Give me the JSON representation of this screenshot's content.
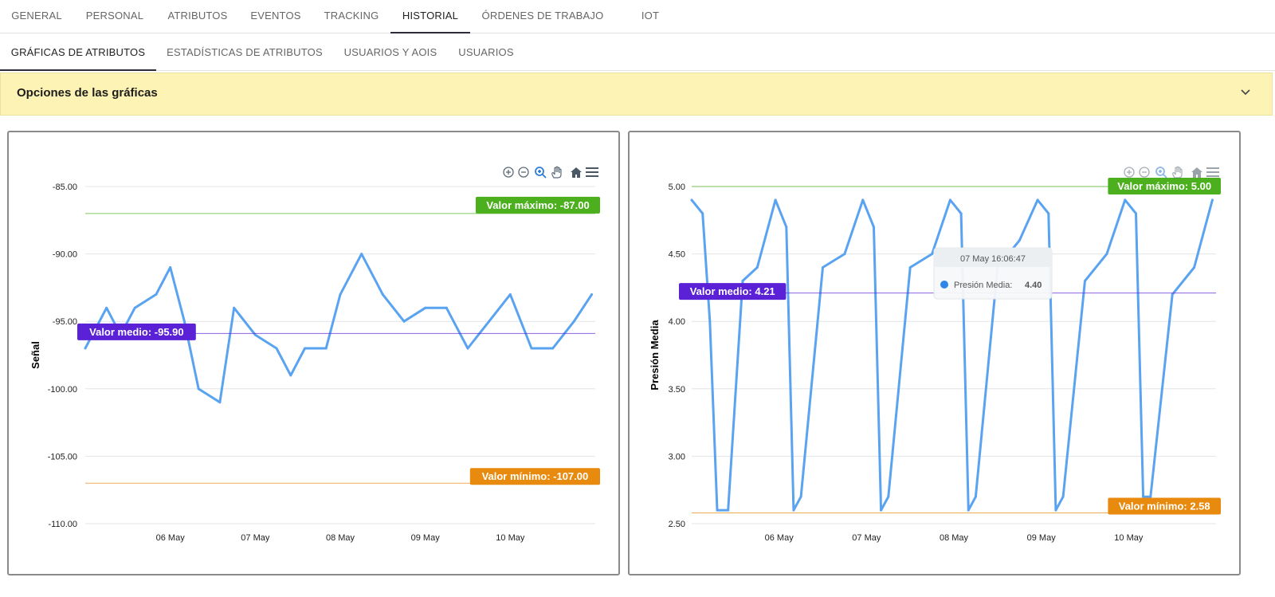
{
  "main_tabs": [
    {
      "label": "GENERAL"
    },
    {
      "label": "PERSONAL"
    },
    {
      "label": "ATRIBUTOS"
    },
    {
      "label": "EVENTOS"
    },
    {
      "label": "TRACKING"
    },
    {
      "label": "HISTORIAL",
      "active": true
    },
    {
      "label": "ÓRDENES DE TRABAJO"
    },
    {
      "label": "IOT"
    }
  ],
  "sub_tabs": [
    {
      "label": "GRÁFICAS DE ATRIBUTOS",
      "active": true
    },
    {
      "label": "ESTADÍSTICAS DE ATRIBUTOS"
    },
    {
      "label": "USUARIOS Y AOIS"
    },
    {
      "label": "USUARIOS"
    }
  ],
  "options": {
    "title": "Opciones de las gráficas"
  },
  "colors": {
    "series": "#5aa3f0",
    "max": "#4caf1e",
    "min": "#e88a0e",
    "mean": "#5b21d6",
    "active_tab_underline": "#2c2c3a",
    "options_bg": "#fcf3b4"
  },
  "toolbar_icons": [
    "zoom-in-icon",
    "zoom-out-icon",
    "magnifier-icon",
    "pan-hand-icon",
    "home-icon",
    "menu-icon"
  ],
  "chart_data": [
    {
      "type": "line",
      "ylabel": "Señal",
      "xlabel": "",
      "ylim": [
        -110,
        -85
      ],
      "yticks": [
        -85,
        -90,
        -95,
        -100,
        -105,
        -110
      ],
      "ytick_labels": [
        "-85.00",
        "-90.00",
        "-95.00",
        "-100.00",
        "-105.00",
        "-110.00"
      ],
      "x_range": [
        "2024-05-05T00:00",
        "2024-05-11T00:00"
      ],
      "xtick_labels": [
        "06 May",
        "07 May",
        "08 May",
        "09 May",
        "10 May"
      ],
      "reference_lines": {
        "max": {
          "value": -87,
          "label": "Valor máximo: -87.00"
        },
        "mean": {
          "value": -95.9,
          "label": "Valor medio: -95.90"
        },
        "min": {
          "value": -107,
          "label": "Valor mínimo: -107.00"
        }
      },
      "series": [
        {
          "x": [
            "05 May 00:00",
            "05 May 06:00",
            "05 May 10:00",
            "05 May 14:00",
            "05 May 20:00",
            "06 May 00:00",
            "06 May 04:00",
            "06 May 08:00",
            "06 May 14:00",
            "06 May 18:00",
            "07 May 00:00",
            "07 May 06:00",
            "07 May 10:00",
            "07 May 14:00",
            "07 May 20:00",
            "08 May 00:00",
            "08 May 06:00",
            "08 May 12:00",
            "08 May 18:00",
            "09 May 00:00",
            "09 May 06:00",
            "09 May 12:00",
            "09 May 18:00",
            "10 May 00:00",
            "10 May 06:00",
            "10 May 12:00",
            "10 May 18:00",
            "10 May 23:00"
          ],
          "values": [
            -97,
            -94,
            -96,
            -94,
            -93,
            -91,
            -95,
            -100,
            -101,
            -94,
            -96,
            -97,
            -99,
            -97,
            -97,
            -93,
            -90,
            -93,
            -95,
            -94,
            -94,
            -97,
            -95,
            -93,
            -97,
            -97,
            -95,
            -93
          ]
        }
      ]
    },
    {
      "type": "line",
      "ylabel": "Presión Media",
      "xlabel": "",
      "ylim": [
        2.5,
        5.0
      ],
      "yticks": [
        5.0,
        4.5,
        4.0,
        3.5,
        3.0,
        2.5
      ],
      "ytick_labels": [
        "5.00",
        "4.50",
        "4.00",
        "3.50",
        "3.00",
        "2.50"
      ],
      "x_range": [
        "2024-05-05T00:00",
        "2024-05-11T00:00"
      ],
      "xtick_labels": [
        "06 May",
        "07 May",
        "08 May",
        "09 May",
        "10 May"
      ],
      "reference_lines": {
        "max": {
          "value": 5.0,
          "label": "Valor máximo: 5.00"
        },
        "mean": {
          "value": 4.21,
          "label": "Valor medio: 4.21"
        },
        "min": {
          "value": 2.58,
          "label": "Valor mínimo: 2.58"
        }
      },
      "series": [
        {
          "name": "Presión Media",
          "x": [
            "05 May 00:00",
            "05 May 03:00",
            "05 May 05:00",
            "05 May 07:00",
            "05 May 10:00",
            "05 May 14:00",
            "05 May 18:00",
            "05 May 23:00",
            "06 May 02:00",
            "06 May 04:00",
            "06 May 06:00",
            "06 May 12:00",
            "06 May 18:00",
            "06 May 23:00",
            "07 May 02:00",
            "07 May 04:00",
            "07 May 06:00",
            "07 May 12:00",
            "07 May 18:00",
            "07 May 23:00",
            "08 May 02:00",
            "08 May 04:00",
            "08 May 06:00",
            "08 May 12:00",
            "08 May 18:00",
            "08 May 23:00",
            "09 May 02:00",
            "09 May 04:00",
            "09 May 06:00",
            "09 May 12:00",
            "09 May 18:00",
            "09 May 23:00",
            "10 May 02:00",
            "10 May 04:00",
            "10 May 06:00",
            "10 May 12:00",
            "10 May 18:00",
            "10 May 23:00"
          ],
          "values": [
            4.9,
            4.8,
            4.0,
            2.6,
            2.6,
            4.3,
            4.4,
            4.9,
            4.7,
            2.6,
            2.7,
            4.4,
            4.5,
            4.9,
            4.7,
            2.6,
            2.7,
            4.4,
            4.5,
            4.9,
            4.8,
            2.6,
            2.7,
            4.4,
            4.6,
            4.9,
            4.8,
            2.6,
            2.7,
            4.3,
            4.5,
            4.9,
            4.8,
            2.7,
            2.7,
            4.2,
            4.4,
            4.9
          ]
        }
      ],
      "tooltip": {
        "time": "07 May 16:06:47",
        "series": "Presión Media:",
        "value": "4.40"
      }
    }
  ]
}
